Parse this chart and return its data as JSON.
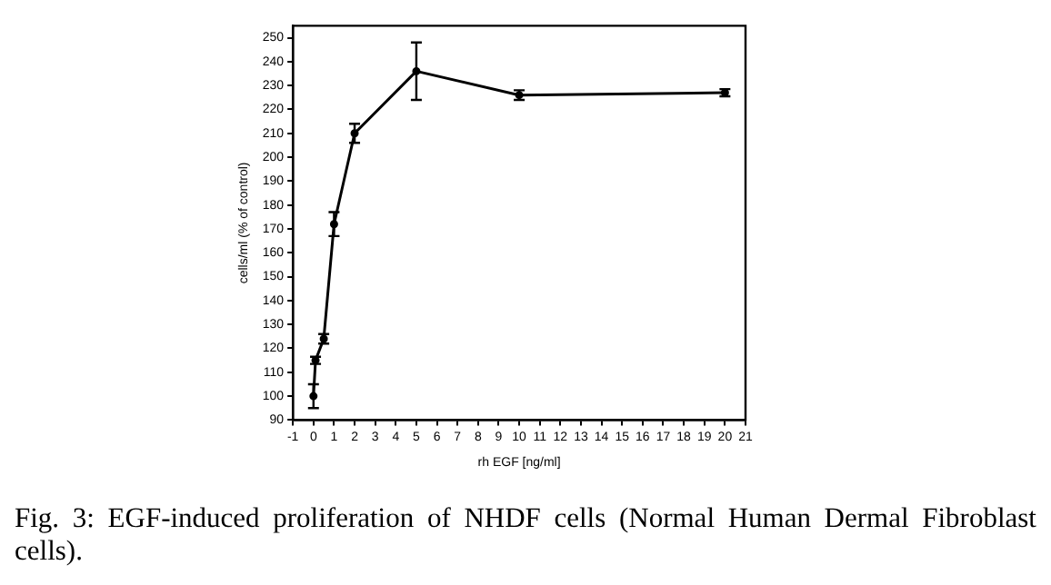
{
  "chart_data": {
    "type": "line",
    "xlabel": "rh EGF [ng/ml]",
    "ylabel": "cells/ml (% of control)",
    "x": [
      0,
      0.1,
      0.5,
      1,
      2,
      5,
      10,
      20
    ],
    "series": [
      {
        "color": "#000000",
        "values": [
          100,
          115,
          124,
          172,
          210,
          236,
          226,
          227
        ],
        "errors": [
          5,
          1.5,
          2,
          5,
          4,
          12,
          2,
          1.5
        ]
      }
    ],
    "xlim": [
      -1,
      21
    ],
    "xticks": [
      -1,
      0,
      1,
      2,
      3,
      4,
      5,
      6,
      7,
      8,
      9,
      10,
      11,
      12,
      13,
      14,
      15,
      16,
      17,
      18,
      19,
      20,
      21
    ],
    "ylim": [
      90,
      255
    ],
    "yticks": [
      90,
      100,
      110,
      120,
      130,
      140,
      150,
      160,
      170,
      180,
      190,
      200,
      210,
      220,
      230,
      240,
      250
    ],
    "grid": false,
    "legend": false,
    "marker": "circle",
    "line_style": "solid",
    "annotations": [
      "Fig. 3: EGF-induced proliferation of NHDF cells (Normal Human Dermal Fibroblast cells)."
    ]
  }
}
